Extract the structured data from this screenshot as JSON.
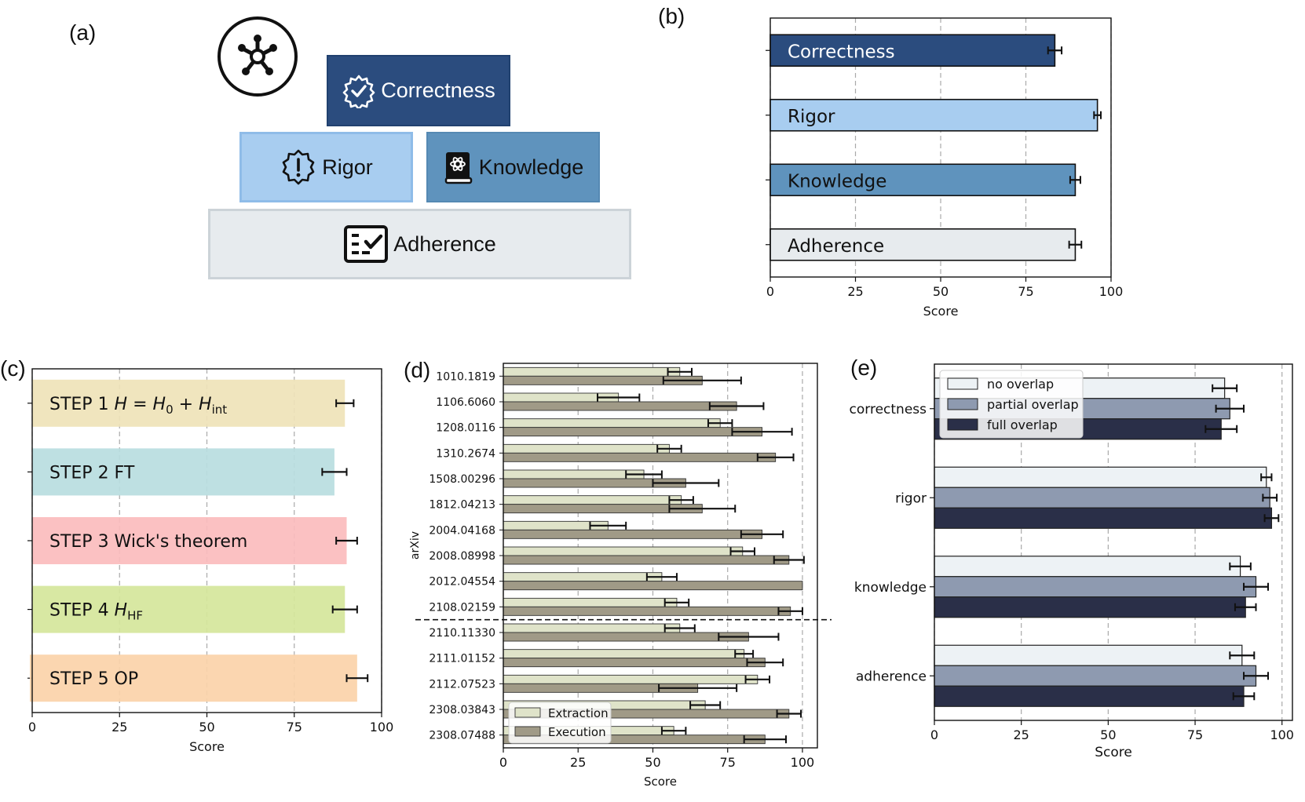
{
  "panel_labels": {
    "a": "(a)",
    "b": "(b)",
    "c": "(c)",
    "d": "(d)",
    "e": "(e)"
  },
  "pyramid": {
    "correctness": "Correctness",
    "rigor": "Rigor",
    "knowledge": "Knowledge",
    "adherence": "Adherence",
    "colors": {
      "correctness": "#2b4c7e",
      "rigor": "#a8cdf0",
      "knowledge": "#5f93bd",
      "adherence": "#e7ebee"
    }
  },
  "chart_data": [
    {
      "id": "b",
      "type": "bar",
      "orientation": "horizontal",
      "categories": [
        "Correctness",
        "Rigor",
        "Knowledge",
        "Adherence"
      ],
      "values": [
        83.5,
        96,
        89.5,
        89.5
      ],
      "errors": [
        2,
        1,
        1.5,
        1.8
      ],
      "colors": [
        "#2b4c7e",
        "#a8cdf0",
        "#5f93bd",
        "#e7ebee"
      ],
      "label_colors": [
        "#ffffff",
        "#111111",
        "#111111",
        "#111111"
      ],
      "xlabel": "Score",
      "xlim": [
        0,
        100
      ],
      "xticks": [
        0,
        25,
        50,
        75,
        100
      ],
      "grid": true
    },
    {
      "id": "c",
      "type": "bar",
      "orientation": "horizontal",
      "categories": [
        "STEP 1",
        "STEP 2 FT",
        "STEP 3 Wick's theorem",
        "STEP 4",
        "STEP 5 OP"
      ],
      "category_math": [
        "H = H₀ + Hint",
        "",
        "",
        "HHF",
        ""
      ],
      "values": [
        89.5,
        86.5,
        90,
        89.5,
        93
      ],
      "errors": [
        2.5,
        3.5,
        3,
        3.5,
        3
      ],
      "colors": [
        "#efe3b8",
        "#b9dde0",
        "#fbbcbd",
        "#d5e69b",
        "#fbd3a9"
      ],
      "xlabel": "Score",
      "xlim": [
        0,
        100
      ],
      "xticks": [
        0,
        25,
        50,
        75,
        100
      ],
      "grid": true
    },
    {
      "id": "d",
      "type": "bar",
      "orientation": "horizontal",
      "categories": [
        "1010.1819",
        "1106.6060",
        "1208.0116",
        "1310.2674",
        "1508.00296",
        "1812.04213",
        "2004.04168",
        "2008.08998",
        "2012.04554",
        "2108.02159",
        "2110.11330",
        "2111.01152",
        "2112.07523",
        "2308.03843",
        "2308.07488"
      ],
      "series": [
        {
          "name": "Extraction",
          "color": "#dfe3c9",
          "values": [
            59,
            38.5,
            72.5,
            55.5,
            47,
            59.5,
            35,
            80,
            53,
            58,
            59,
            80.5,
            85,
            67.5,
            57
          ],
          "errors": [
            4,
            7,
            4,
            4,
            6,
            4,
            6,
            4,
            5,
            4,
            5,
            3,
            4,
            5,
            4
          ]
        },
        {
          "name": "Execution",
          "color": "#a09a87",
          "values": [
            66.5,
            78,
            86.5,
            91,
            61,
            66.5,
            86.5,
            95.5,
            100,
            96,
            82,
            87.5,
            65,
            95.5,
            87.5
          ],
          "errors": [
            13,
            9,
            10,
            6,
            11,
            11,
            7,
            5,
            0,
            4,
            10,
            6,
            13,
            4,
            7
          ]
        }
      ],
      "ylabel": "arXiv",
      "xlabel": "Score",
      "xlim": [
        0,
        105
      ],
      "xticks": [
        0,
        25,
        50,
        75,
        100
      ],
      "divider_after_index": 9,
      "legend": "lower-left",
      "grid": true
    },
    {
      "id": "e",
      "type": "bar",
      "orientation": "horizontal",
      "categories": [
        "correctness",
        "rigor",
        "knowledge",
        "adherence"
      ],
      "series": [
        {
          "name": "no overlap",
          "color": "#edf2f5",
          "values": [
            83.5,
            95.5,
            88,
            88.5
          ],
          "errors": [
            3.5,
            1.5,
            3,
            3.5
          ]
        },
        {
          "name": "partial overlap",
          "color": "#8e9ab0",
          "values": [
            85,
            96.5,
            92.5,
            92.5
          ],
          "errors": [
            4,
            2,
            3.5,
            3.5
          ]
        },
        {
          "name": "full overlap",
          "color": "#2a2f48",
          "values": [
            82.5,
            97,
            89.5,
            89
          ],
          "errors": [
            4.5,
            2,
            3,
            3
          ]
        }
      ],
      "xlabel": "Score",
      "xlim": [
        0,
        103
      ],
      "xticks": [
        0,
        25,
        50,
        75,
        100
      ],
      "legend": "top-left",
      "grid": true
    }
  ]
}
